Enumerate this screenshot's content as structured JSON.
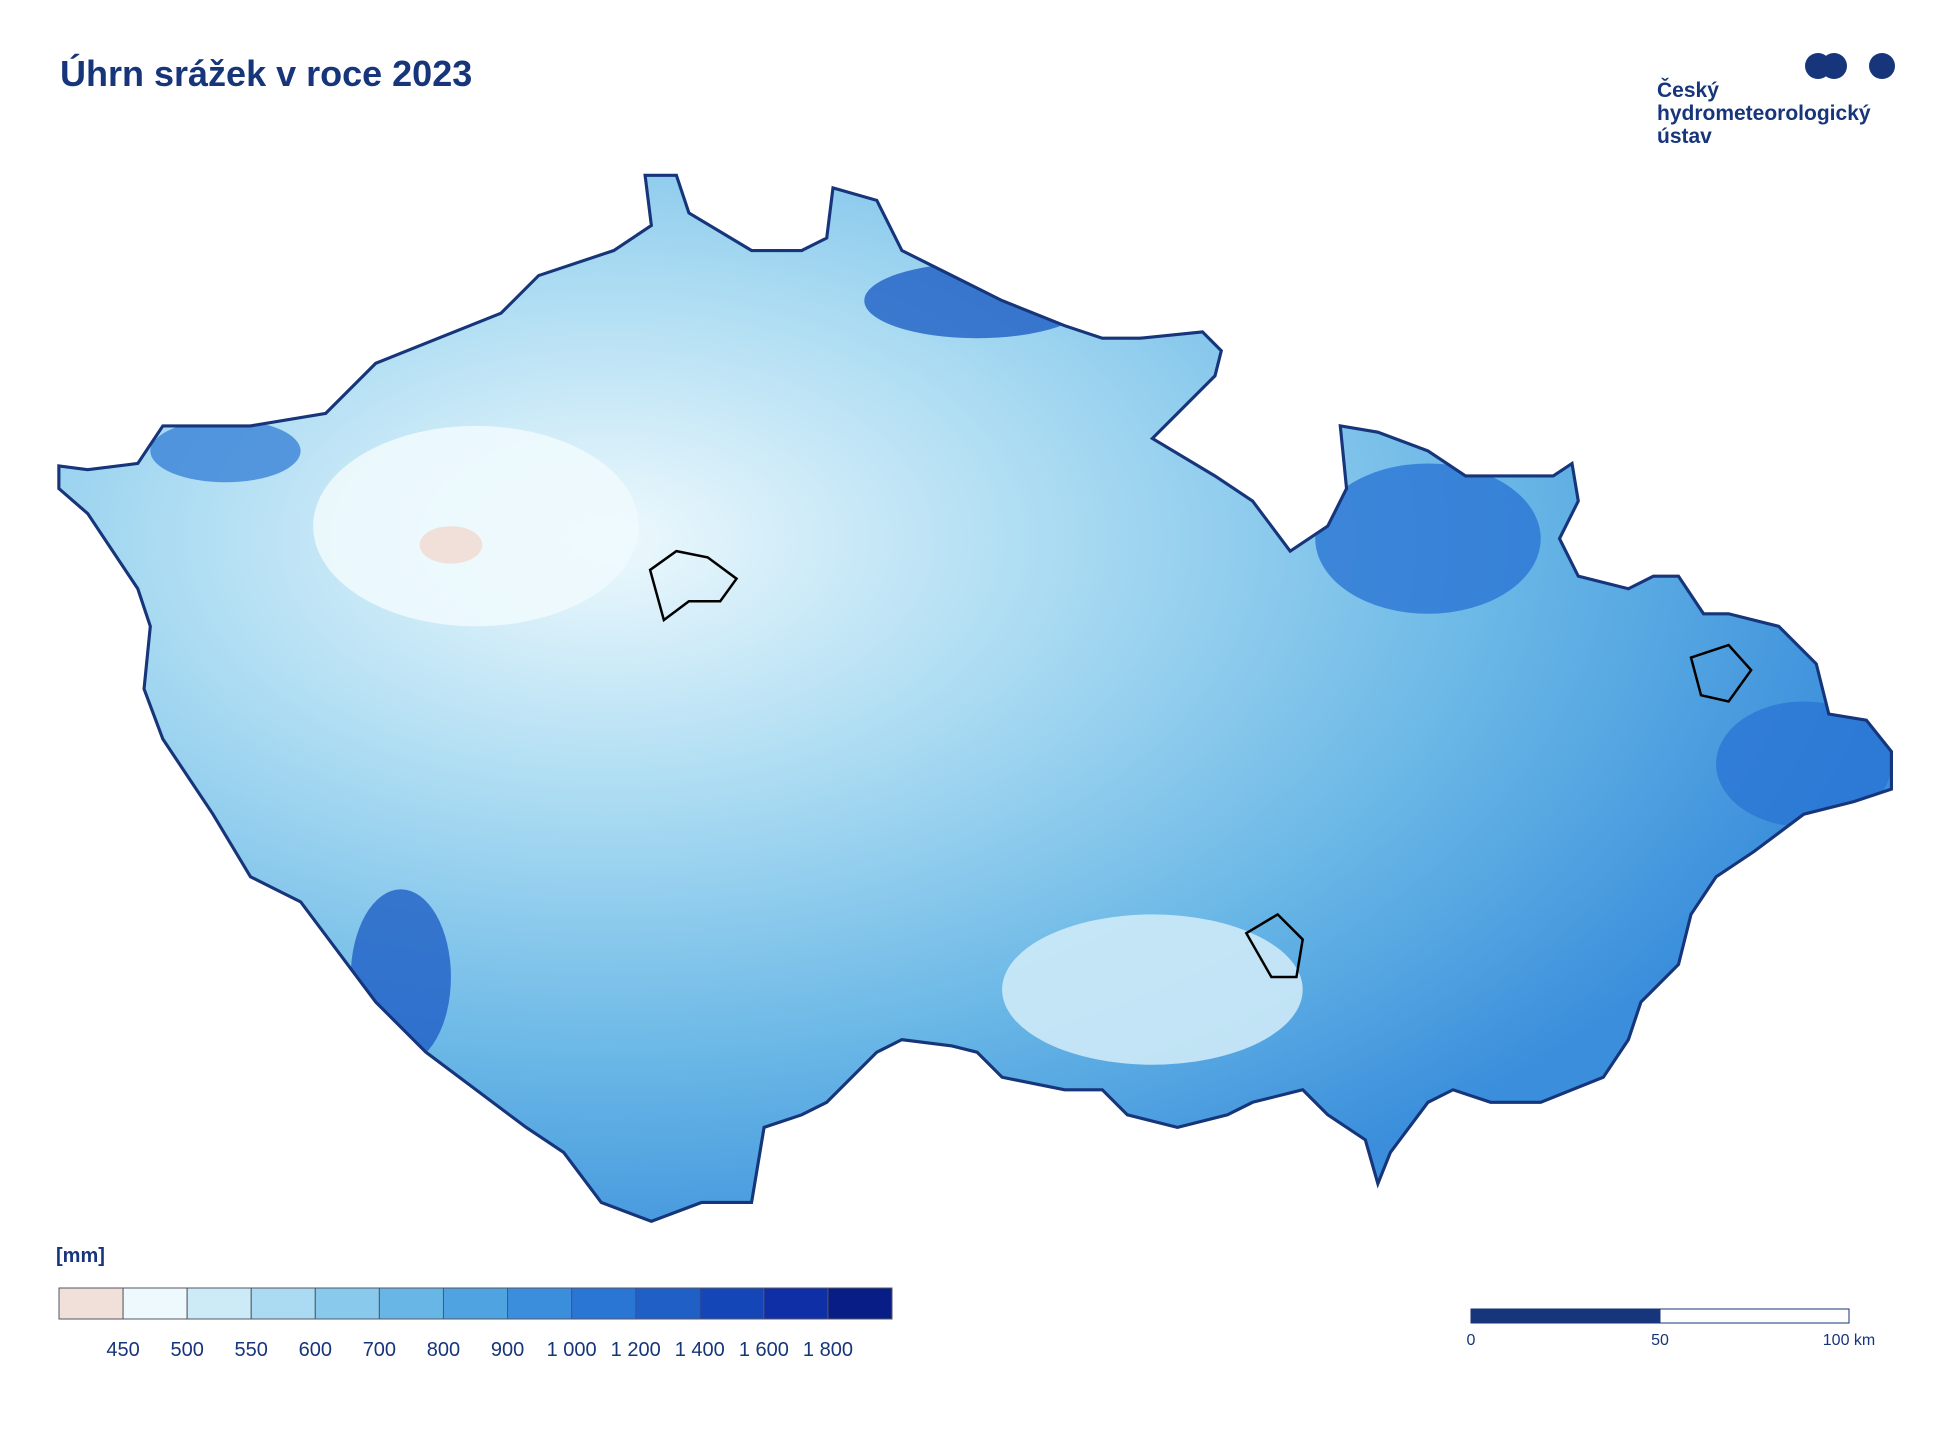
{
  "header": {
    "title": "Úhrn srážek v roce 2023"
  },
  "logo": {
    "lines": [
      "Český",
      "hydrometeorologický",
      "ústav"
    ]
  },
  "legend": {
    "unit": "[mm]",
    "colors": [
      "#f1e0da",
      "#eef9fd",
      "#cdeaf7",
      "#aadbf2",
      "#88c9ec",
      "#68b6e6",
      "#4ea3e0",
      "#3a8edb",
      "#2a76d4",
      "#1f5fc6",
      "#1546b8",
      "#0e2fa6",
      "#081e86"
    ],
    "labels": [
      "450",
      "500",
      "550",
      "600",
      "700",
      "800",
      "900",
      "1 000",
      "1 200",
      "1 400",
      "1 600",
      "1 800"
    ]
  },
  "scale_bar": {
    "labels": [
      "0",
      "50",
      "100 km"
    ]
  }
}
